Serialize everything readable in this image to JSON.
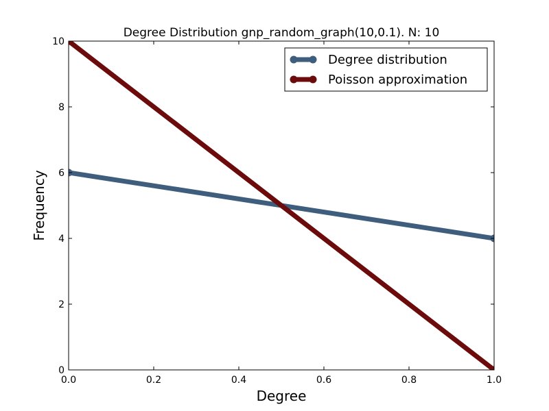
{
  "chart_data": {
    "type": "line",
    "title": "Degree Distribution gnp_random_graph(10,0.1). N: 10",
    "xlabel": "Degree",
    "ylabel": "Frequency",
    "xlim": [
      0,
      1
    ],
    "ylim": [
      0,
      10
    ],
    "x_ticks": [
      "0.0",
      "0.2",
      "0.4",
      "0.6",
      "0.8",
      "1.0"
    ],
    "y_ticks": [
      "0",
      "2",
      "4",
      "6",
      "8",
      "10"
    ],
    "grid": false,
    "legend_position": "top-right",
    "series": [
      {
        "name": "Degree distribution",
        "color": "#3f5d7d",
        "x": [
          0,
          1
        ],
        "y": [
          6,
          4
        ]
      },
      {
        "name": "Poisson approximation",
        "color": "#6b0b0b",
        "x": [
          0,
          1
        ],
        "y": [
          10,
          0
        ]
      }
    ]
  }
}
